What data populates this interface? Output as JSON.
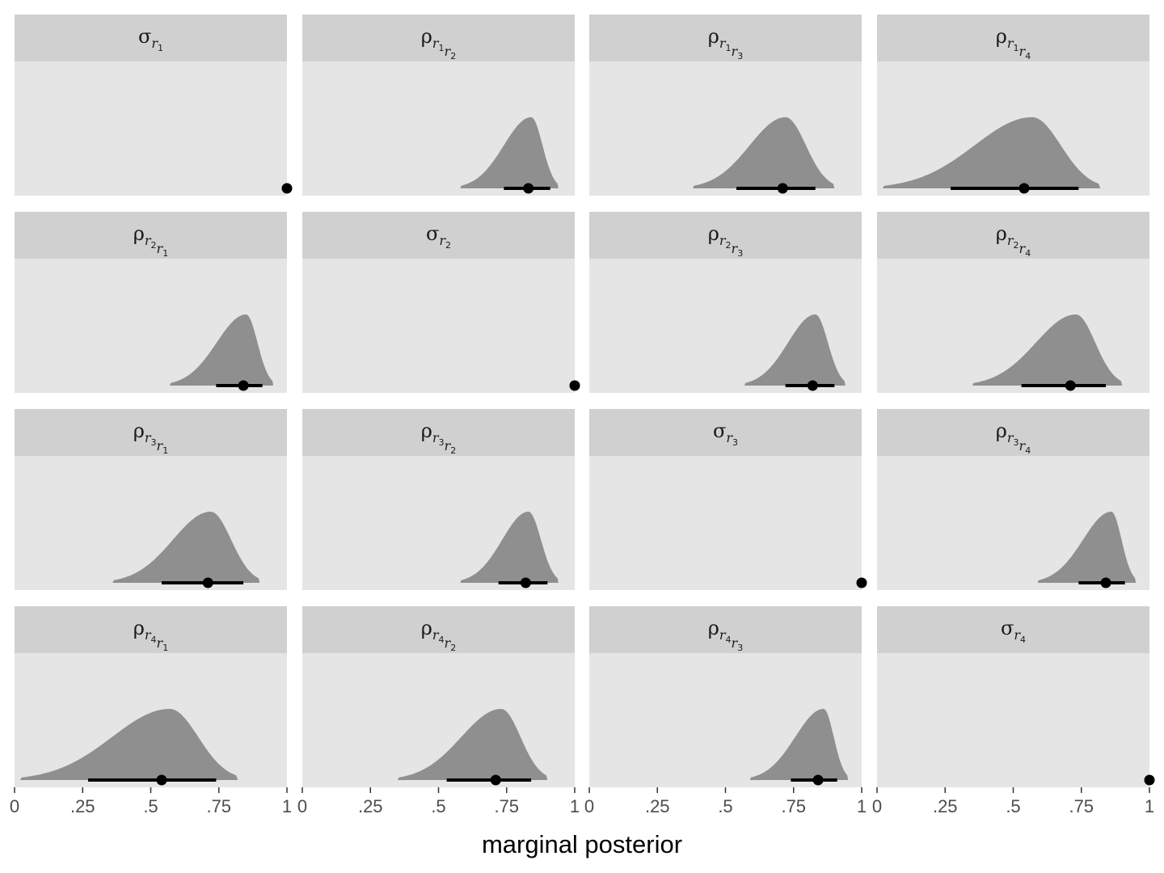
{
  "chart_data": {
    "type": "faceted-density-interval",
    "xlabel": "marginal posterior",
    "xlim": [
      0,
      1
    ],
    "x_ticks": [
      0,
      0.25,
      0.5,
      0.75,
      1
    ],
    "x_tick_labels": [
      "0",
      ".25",
      ".5",
      ".75",
      "1"
    ],
    "grid": false,
    "colors": {
      "panel_bg": "#e5e5e5",
      "strip_bg": "#d0d0d0",
      "density_fill": "#8f8f8f",
      "interval": "#000000"
    },
    "facets": [
      {
        "row": 1,
        "col": 1,
        "param": "sigma",
        "i": 1,
        "j": null,
        "point": 1.0
      },
      {
        "row": 1,
        "col": 2,
        "param": "rho",
        "i": 1,
        "j": 2,
        "point": 0.83,
        "interval": [
          0.74,
          0.91
        ],
        "density_support": [
          0.58,
          0.94
        ],
        "density_mode": 0.84
      },
      {
        "row": 1,
        "col": 3,
        "param": "rho",
        "i": 1,
        "j": 3,
        "point": 0.71,
        "interval": [
          0.54,
          0.83
        ],
        "density_support": [
          0.38,
          0.9
        ],
        "density_mode": 0.72
      },
      {
        "row": 1,
        "col": 4,
        "param": "rho",
        "i": 1,
        "j": 4,
        "point": 0.54,
        "interval": [
          0.27,
          0.74
        ],
        "density_support": [
          0.02,
          0.82
        ],
        "density_mode": 0.57
      },
      {
        "row": 2,
        "col": 1,
        "param": "rho",
        "i": 2,
        "j": 1,
        "point": 0.84,
        "interval": [
          0.74,
          0.91
        ],
        "density_support": [
          0.57,
          0.95
        ],
        "density_mode": 0.85
      },
      {
        "row": 2,
        "col": 2,
        "param": "sigma",
        "i": 2,
        "j": null,
        "point": 1.0
      },
      {
        "row": 2,
        "col": 3,
        "param": "rho",
        "i": 2,
        "j": 3,
        "point": 0.82,
        "interval": [
          0.72,
          0.9
        ],
        "density_support": [
          0.57,
          0.94
        ],
        "density_mode": 0.83
      },
      {
        "row": 2,
        "col": 4,
        "param": "rho",
        "i": 2,
        "j": 4,
        "point": 0.71,
        "interval": [
          0.53,
          0.84
        ],
        "density_support": [
          0.35,
          0.9
        ],
        "density_mode": 0.73
      },
      {
        "row": 3,
        "col": 1,
        "param": "rho",
        "i": 3,
        "j": 1,
        "point": 0.71,
        "interval": [
          0.54,
          0.84
        ],
        "density_support": [
          0.36,
          0.9
        ],
        "density_mode": 0.72
      },
      {
        "row": 3,
        "col": 2,
        "param": "rho",
        "i": 3,
        "j": 2,
        "point": 0.82,
        "interval": [
          0.72,
          0.9
        ],
        "density_support": [
          0.58,
          0.94
        ],
        "density_mode": 0.83
      },
      {
        "row": 3,
        "col": 3,
        "param": "sigma",
        "i": 3,
        "j": null,
        "point": 1.0
      },
      {
        "row": 3,
        "col": 4,
        "param": "rho",
        "i": 3,
        "j": 4,
        "point": 0.84,
        "interval": [
          0.74,
          0.91
        ],
        "density_support": [
          0.59,
          0.95
        ],
        "density_mode": 0.86
      },
      {
        "row": 4,
        "col": 1,
        "param": "rho",
        "i": 4,
        "j": 1,
        "point": 0.54,
        "interval": [
          0.27,
          0.74
        ],
        "density_support": [
          0.02,
          0.82
        ],
        "density_mode": 0.57
      },
      {
        "row": 4,
        "col": 2,
        "param": "rho",
        "i": 4,
        "j": 2,
        "point": 0.71,
        "interval": [
          0.53,
          0.84
        ],
        "density_support": [
          0.35,
          0.9
        ],
        "density_mode": 0.73
      },
      {
        "row": 4,
        "col": 3,
        "param": "rho",
        "i": 4,
        "j": 3,
        "point": 0.84,
        "interval": [
          0.74,
          0.91
        ],
        "density_support": [
          0.59,
          0.95
        ],
        "density_mode": 0.86
      },
      {
        "row": 4,
        "col": 4,
        "param": "sigma",
        "i": 4,
        "j": null,
        "point": 1.0
      }
    ]
  }
}
